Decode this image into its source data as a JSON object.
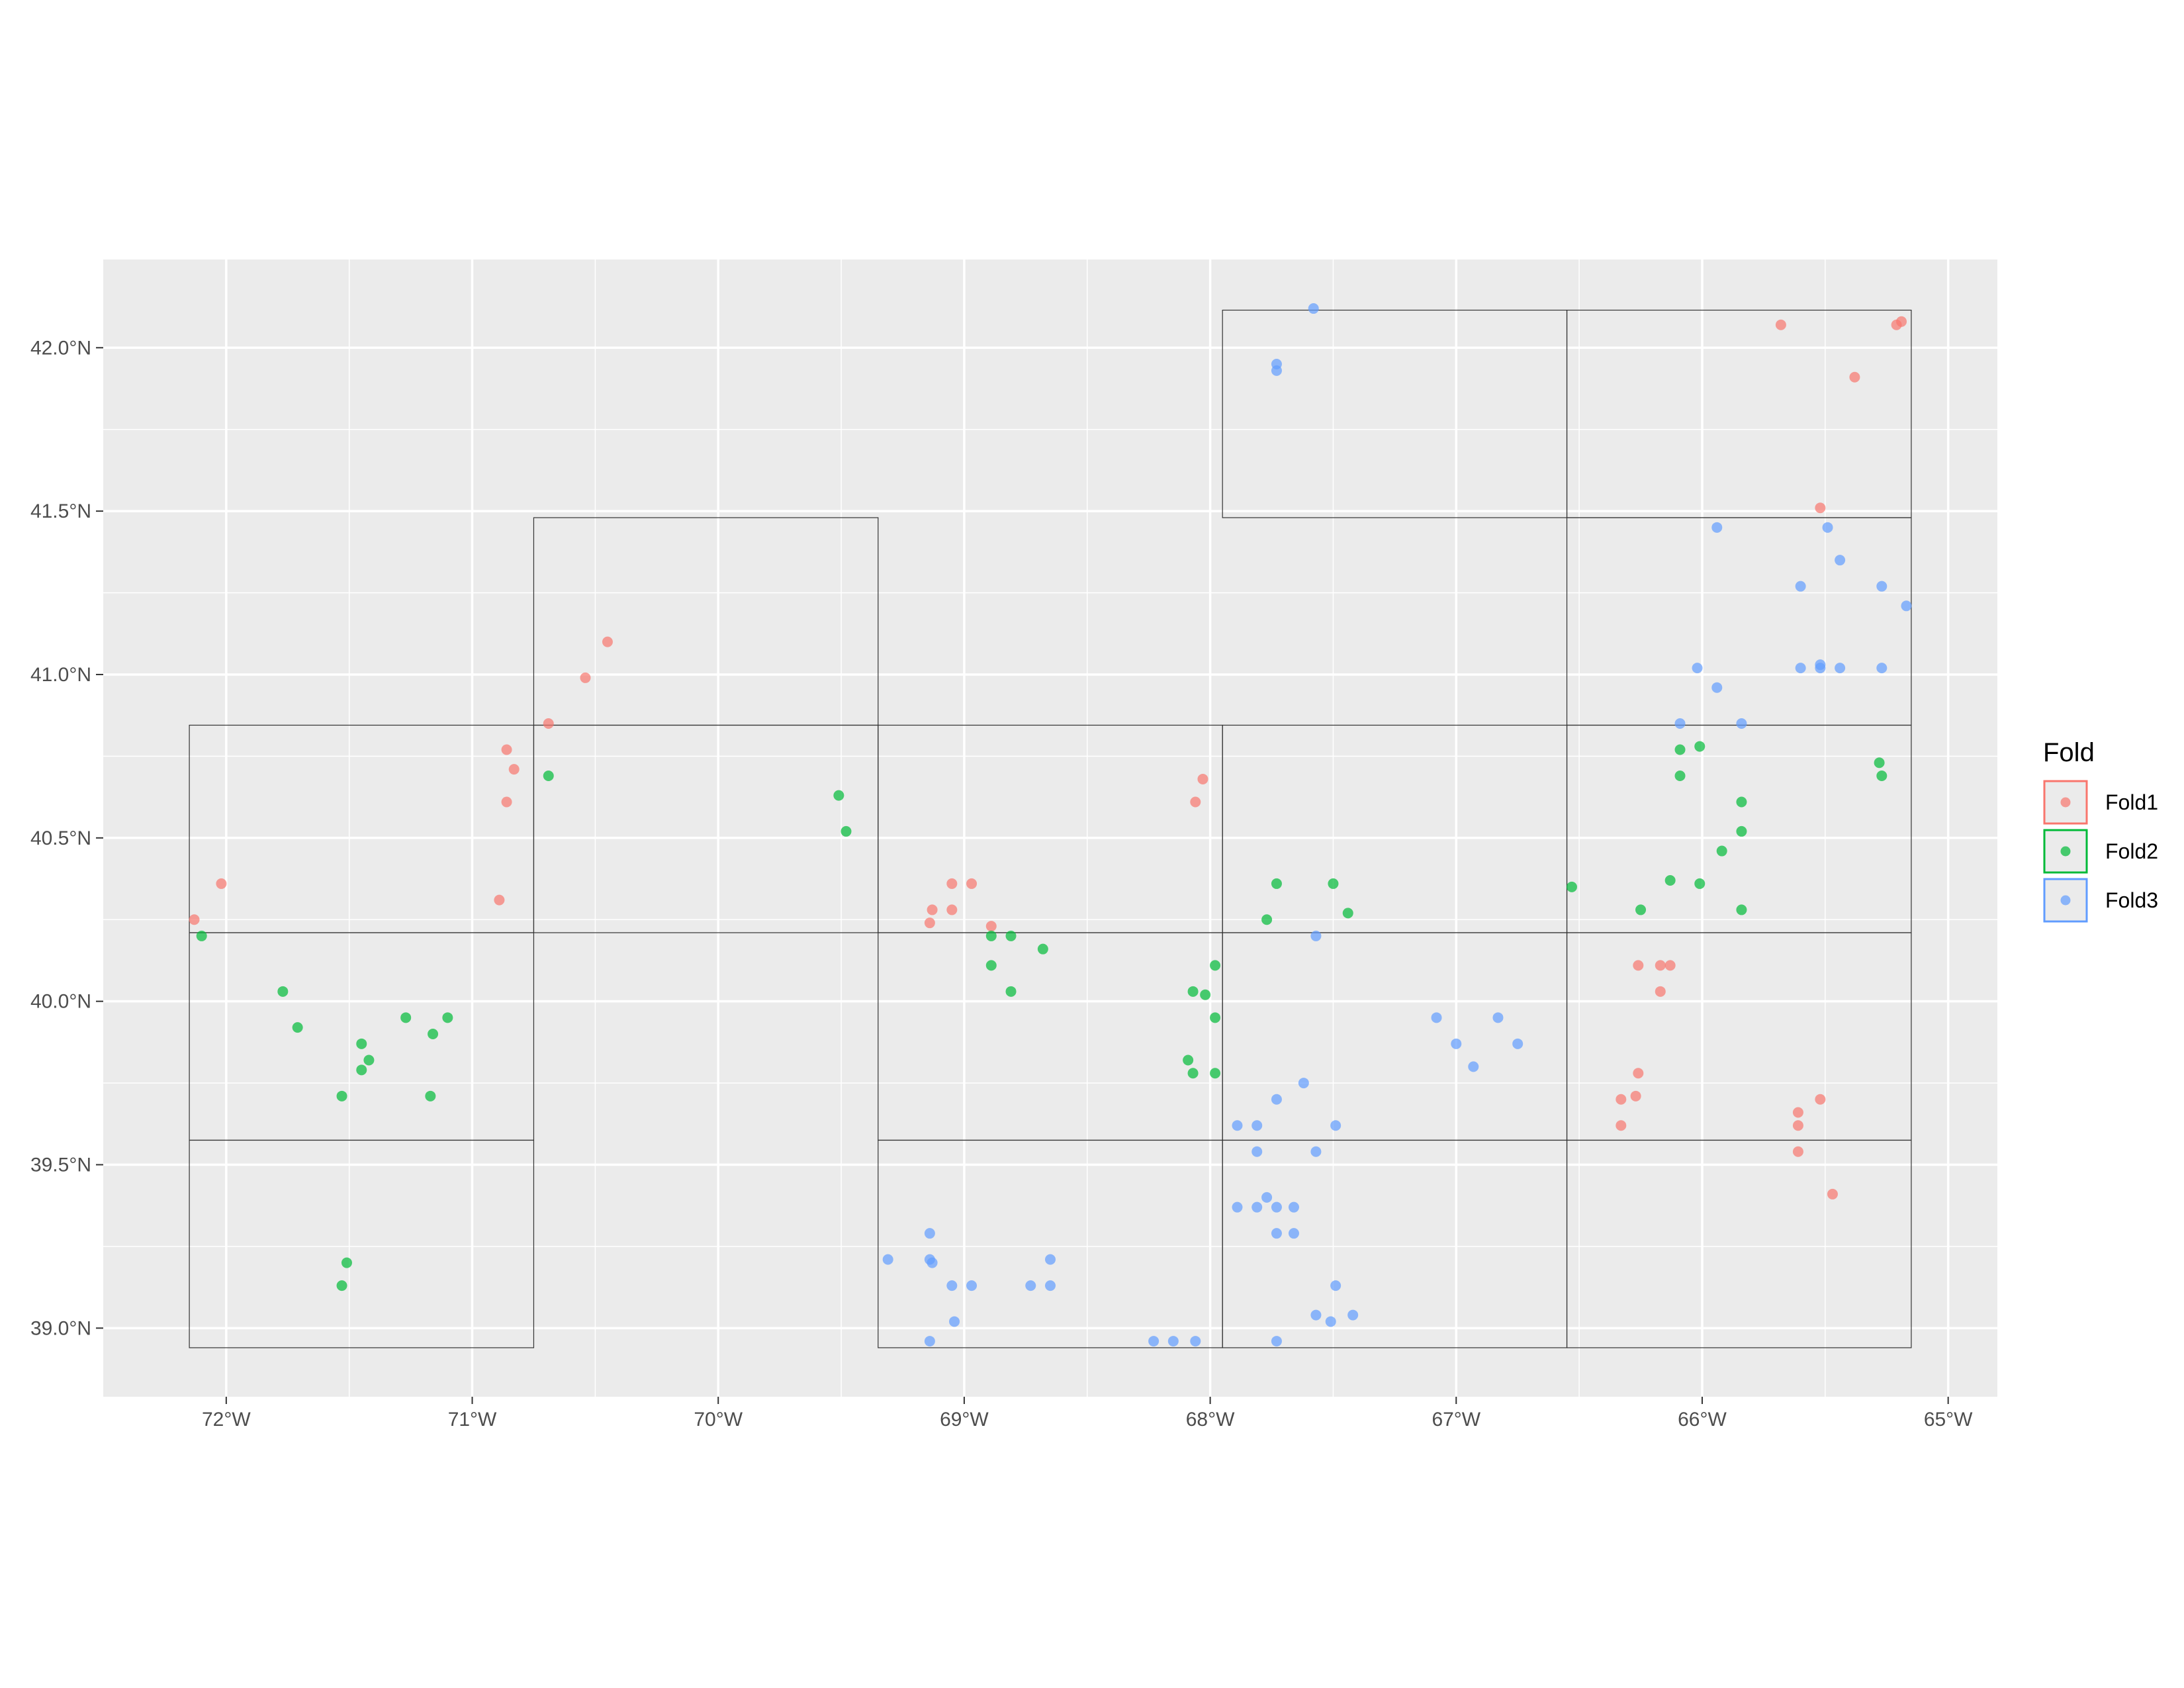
{
  "chart_data": {
    "type": "scatter",
    "xlim": [
      -72.5,
      -64.8
    ],
    "ylim": [
      38.79,
      42.27
    ],
    "x_ticks": [
      {
        "value": -72,
        "label": "72°W"
      },
      {
        "value": -71,
        "label": "71°W"
      },
      {
        "value": -70,
        "label": "70°W"
      },
      {
        "value": -69,
        "label": "69°W"
      },
      {
        "value": -68,
        "label": "68°W"
      },
      {
        "value": -67,
        "label": "67°W"
      },
      {
        "value": -66,
        "label": "66°W"
      },
      {
        "value": -65,
        "label": "65°W"
      }
    ],
    "y_ticks": [
      {
        "value": 39.0,
        "label": "39.0°N"
      },
      {
        "value": 39.5,
        "label": "39.5°N"
      },
      {
        "value": 40.0,
        "label": "40.0°N"
      },
      {
        "value": 40.5,
        "label": "40.5°N"
      },
      {
        "value": 41.0,
        "label": "41.0°N"
      },
      {
        "value": 41.5,
        "label": "41.5°N"
      },
      {
        "value": 42.0,
        "label": "42.0°N"
      }
    ],
    "grid": true,
    "legend": {
      "title": "Fold",
      "position": "right"
    },
    "blocks": [
      {
        "xmin": -72.15,
        "xmax": -70.75,
        "ymin": 38.94,
        "ymax": 39.575
      },
      {
        "xmin": -72.15,
        "xmax": -70.75,
        "ymin": 39.575,
        "ymax": 40.21
      },
      {
        "xmin": -72.15,
        "xmax": -70.75,
        "ymin": 40.21,
        "ymax": 40.845
      },
      {
        "xmin": -70.75,
        "xmax": -69.35,
        "ymin": 40.845,
        "ymax": 41.48
      },
      {
        "xmin": -70.75,
        "xmax": -69.35,
        "ymin": 40.21,
        "ymax": 40.845
      },
      {
        "xmin": -69.35,
        "xmax": -67.95,
        "ymin": 40.21,
        "ymax": 40.845
      },
      {
        "xmin": -69.35,
        "xmax": -67.95,
        "ymin": 39.575,
        "ymax": 40.21
      },
      {
        "xmin": -69.35,
        "xmax": -67.95,
        "ymin": 38.94,
        "ymax": 39.575
      },
      {
        "xmin": -67.95,
        "xmax": -66.55,
        "ymin": 41.48,
        "ymax": 42.115
      },
      {
        "xmin": -67.95,
        "xmax": -66.55,
        "ymin": 40.21,
        "ymax": 40.845
      },
      {
        "xmin": -67.95,
        "xmax": -66.55,
        "ymin": 39.575,
        "ymax": 40.21
      },
      {
        "xmin": -67.95,
        "xmax": -66.55,
        "ymin": 38.94,
        "ymax": 39.575
      },
      {
        "xmin": -66.55,
        "xmax": -65.15,
        "ymin": 41.48,
        "ymax": 42.115
      },
      {
        "xmin": -66.55,
        "xmax": -65.15,
        "ymin": 40.845,
        "ymax": 41.48
      },
      {
        "xmin": -66.55,
        "xmax": -65.15,
        "ymin": 40.21,
        "ymax": 40.845
      },
      {
        "xmin": -66.55,
        "xmax": -65.15,
        "ymin": 39.575,
        "ymax": 40.21
      },
      {
        "xmin": -66.55,
        "xmax": -65.15,
        "ymin": 38.94,
        "ymax": 39.575
      }
    ],
    "series": [
      {
        "name": "Fold1",
        "color": "#F8766D",
        "points": [
          [
            -72.13,
            40.25
          ],
          [
            -72.02,
            40.36
          ],
          [
            -70.89,
            40.31
          ],
          [
            -70.86,
            40.61
          ],
          [
            -70.86,
            40.77
          ],
          [
            -70.83,
            40.71
          ],
          [
            -70.69,
            40.85
          ],
          [
            -70.54,
            40.99
          ],
          [
            -70.45,
            41.1
          ],
          [
            -69.14,
            40.24
          ],
          [
            -69.13,
            40.28
          ],
          [
            -69.05,
            40.28
          ],
          [
            -69.05,
            40.36
          ],
          [
            -68.97,
            40.36
          ],
          [
            -68.89,
            40.23
          ],
          [
            -68.06,
            40.61
          ],
          [
            -68.03,
            40.68
          ],
          [
            -66.33,
            39.62
          ],
          [
            -66.33,
            39.7
          ],
          [
            -66.27,
            39.71
          ],
          [
            -66.26,
            39.78
          ],
          [
            -66.26,
            40.11
          ],
          [
            -66.17,
            40.03
          ],
          [
            -66.17,
            40.11
          ],
          [
            -66.13,
            40.11
          ],
          [
            -65.68,
            42.07
          ],
          [
            -65.61,
            39.54
          ],
          [
            -65.61,
            39.62
          ],
          [
            -65.61,
            39.66
          ],
          [
            -65.52,
            39.7
          ],
          [
            -65.52,
            41.51
          ],
          [
            -65.47,
            39.41
          ],
          [
            -65.38,
            41.91
          ],
          [
            -65.21,
            42.07
          ],
          [
            -65.19,
            42.08
          ]
        ]
      },
      {
        "name": "Fold2",
        "color": "#00BA38",
        "points": [
          [
            -72.1,
            40.2
          ],
          [
            -71.77,
            40.03
          ],
          [
            -71.71,
            39.92
          ],
          [
            -71.53,
            39.71
          ],
          [
            -71.51,
            39.2
          ],
          [
            -71.53,
            39.13
          ],
          [
            -71.45,
            39.87
          ],
          [
            -71.45,
            39.79
          ],
          [
            -71.42,
            39.82
          ],
          [
            -71.27,
            39.95
          ],
          [
            -71.16,
            39.9
          ],
          [
            -71.1,
            39.95
          ],
          [
            -71.17,
            39.71
          ],
          [
            -70.69,
            40.69
          ],
          [
            -69.51,
            40.63
          ],
          [
            -69.48,
            40.52
          ],
          [
            -68.89,
            40.2
          ],
          [
            -68.89,
            40.11
          ],
          [
            -68.81,
            40.2
          ],
          [
            -68.81,
            40.03
          ],
          [
            -68.68,
            40.16
          ],
          [
            -68.09,
            39.82
          ],
          [
            -68.07,
            39.78
          ],
          [
            -68.07,
            40.03
          ],
          [
            -68.02,
            40.02
          ],
          [
            -67.98,
            40.11
          ],
          [
            -67.98,
            39.95
          ],
          [
            -67.98,
            39.78
          ],
          [
            -67.77,
            40.25
          ],
          [
            -67.73,
            40.36
          ],
          [
            -67.5,
            40.36
          ],
          [
            -67.44,
            40.27
          ],
          [
            -66.53,
            40.35
          ],
          [
            -66.25,
            40.28
          ],
          [
            -66.13,
            40.37
          ],
          [
            -66.09,
            40.69
          ],
          [
            -66.09,
            40.77
          ],
          [
            -66.01,
            40.78
          ],
          [
            -66.01,
            40.36
          ],
          [
            -65.92,
            40.46
          ],
          [
            -65.84,
            40.61
          ],
          [
            -65.84,
            40.52
          ],
          [
            -65.84,
            40.28
          ],
          [
            -65.28,
            40.73
          ],
          [
            -65.27,
            40.69
          ]
        ]
      },
      {
        "name": "Fold3",
        "color": "#619CFF",
        "points": [
          [
            -69.31,
            39.21
          ],
          [
            -69.14,
            39.29
          ],
          [
            -69.14,
            39.21
          ],
          [
            -69.13,
            39.2
          ],
          [
            -69.14,
            38.96
          ],
          [
            -69.05,
            39.13
          ],
          [
            -69.04,
            39.02
          ],
          [
            -68.97,
            39.13
          ],
          [
            -68.73,
            39.13
          ],
          [
            -68.65,
            39.13
          ],
          [
            -68.65,
            39.21
          ],
          [
            -68.23,
            38.96
          ],
          [
            -68.15,
            38.96
          ],
          [
            -68.06,
            38.96
          ],
          [
            -67.89,
            39.62
          ],
          [
            -67.89,
            39.37
          ],
          [
            -67.81,
            39.62
          ],
          [
            -67.81,
            39.54
          ],
          [
            -67.81,
            39.37
          ],
          [
            -67.77,
            39.4
          ],
          [
            -67.73,
            39.37
          ],
          [
            -67.73,
            39.29
          ],
          [
            -67.73,
            39.7
          ],
          [
            -67.73,
            38.96
          ],
          [
            -67.66,
            39.37
          ],
          [
            -67.66,
            39.29
          ],
          [
            -67.62,
            39.75
          ],
          [
            -67.57,
            40.2
          ],
          [
            -67.57,
            39.54
          ],
          [
            -67.57,
            39.04
          ],
          [
            -67.51,
            39.02
          ],
          [
            -67.49,
            39.62
          ],
          [
            -67.49,
            39.13
          ],
          [
            -67.42,
            39.04
          ],
          [
            -67.73,
            41.95
          ],
          [
            -67.73,
            41.93
          ],
          [
            -67.58,
            42.12
          ],
          [
            -67.08,
            39.95
          ],
          [
            -67.0,
            39.87
          ],
          [
            -66.93,
            39.8
          ],
          [
            -66.83,
            39.95
          ],
          [
            -66.75,
            39.87
          ],
          [
            -66.09,
            40.85
          ],
          [
            -66.02,
            41.02
          ],
          [
            -65.94,
            41.45
          ],
          [
            -65.94,
            40.96
          ],
          [
            -65.84,
            40.85
          ],
          [
            -65.6,
            41.27
          ],
          [
            -65.6,
            41.02
          ],
          [
            -65.52,
            41.03
          ],
          [
            -65.52,
            41.02
          ],
          [
            -65.49,
            41.45
          ],
          [
            -65.44,
            41.35
          ],
          [
            -65.44,
            41.02
          ],
          [
            -65.27,
            41.27
          ],
          [
            -65.27,
            41.02
          ],
          [
            -65.17,
            41.21
          ]
        ]
      }
    ]
  }
}
